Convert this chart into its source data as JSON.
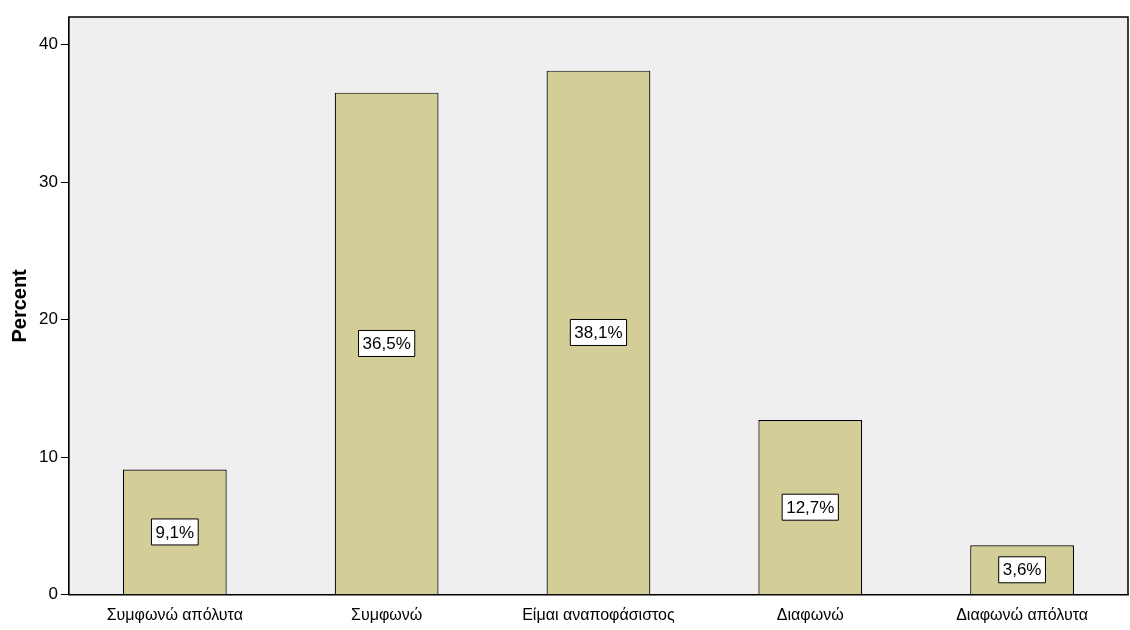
{
  "chart_data": {
    "type": "bar",
    "ylabel": "Percent",
    "categories": [
      "Συμφωνώ απόλυτα",
      "Συμφωνώ",
      "Είμαι αναποφάσιστος",
      "Διαφωνώ",
      "Διαφωνώ απόλυτα"
    ],
    "values": [
      9.1,
      36.5,
      38.1,
      12.7,
      3.6
    ],
    "value_labels": [
      "9,1%",
      "36,5%",
      "38,1%",
      "12,7%",
      "3,6%"
    ],
    "color": "#d3cd97",
    "ylim": [
      0,
      42
    ],
    "yticks": [
      0,
      10,
      20,
      30,
      40
    ],
    "grid": false,
    "legend": false
  }
}
